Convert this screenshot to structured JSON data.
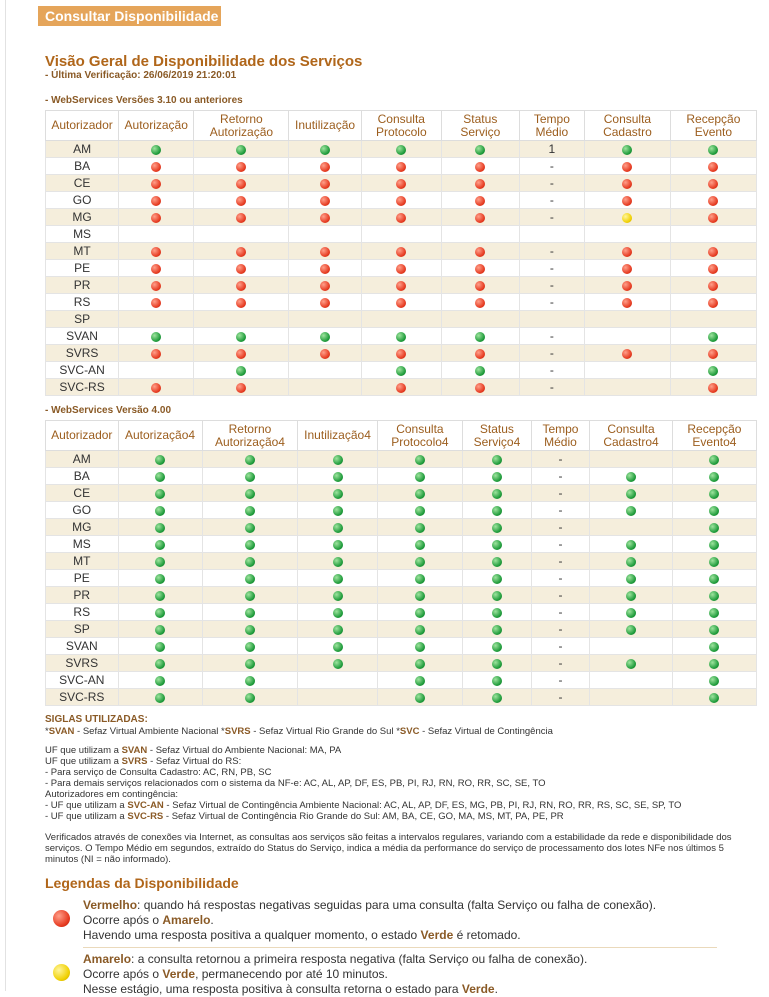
{
  "header": {
    "title": "Consultar Disponibilidade"
  },
  "overview": {
    "title": "Visão Geral de Disponibilidade dos Serviços",
    "last_check": "- Última Verificação: 26/06/2019 21:20:01"
  },
  "table1": {
    "section_label": "- WebServices Versões 3.10 ou anteriores",
    "headers": [
      [
        "Autorizador"
      ],
      [
        "Autorização"
      ],
      [
        "Retorno",
        "Autorização"
      ],
      [
        "Inutilização"
      ],
      [
        "Consulta",
        "Protocolo"
      ],
      [
        "Status",
        "Serviço"
      ],
      [
        "Tempo",
        "Médio"
      ],
      [
        "Consulta",
        "Cadastro"
      ],
      [
        "Recepção",
        "Evento"
      ]
    ],
    "rows": [
      [
        "AM",
        "g",
        "g",
        "g",
        "g",
        "g",
        "1",
        "g",
        "g"
      ],
      [
        "BA",
        "r",
        "r",
        "r",
        "r",
        "r",
        "-",
        "r",
        "r"
      ],
      [
        "CE",
        "r",
        "r",
        "r",
        "r",
        "r",
        "-",
        "r",
        "r"
      ],
      [
        "GO",
        "r",
        "r",
        "r",
        "r",
        "r",
        "-",
        "r",
        "r"
      ],
      [
        "MG",
        "r",
        "r",
        "r",
        "r",
        "r",
        "-",
        "y",
        "r"
      ],
      [
        "MS",
        "",
        "",
        "",
        "",
        "",
        "",
        "",
        ""
      ],
      [
        "MT",
        "r",
        "r",
        "r",
        "r",
        "r",
        "-",
        "r",
        "r"
      ],
      [
        "PE",
        "r",
        "r",
        "r",
        "r",
        "r",
        "-",
        "r",
        "r"
      ],
      [
        "PR",
        "r",
        "r",
        "r",
        "r",
        "r",
        "-",
        "r",
        "r"
      ],
      [
        "RS",
        "r",
        "r",
        "r",
        "r",
        "r",
        "-",
        "r",
        "r"
      ],
      [
        "SP",
        "",
        "",
        "",
        "",
        "",
        "",
        "",
        ""
      ],
      [
        "SVAN",
        "g",
        "g",
        "g",
        "g",
        "g",
        "-",
        "",
        "g"
      ],
      [
        "SVRS",
        "r",
        "r",
        "r",
        "r",
        "r",
        "-",
        "r",
        "r"
      ],
      [
        "SVC-AN",
        "",
        "g",
        "",
        "g",
        "g",
        "-",
        "",
        "g"
      ],
      [
        "SVC-RS",
        "r",
        "r",
        "",
        "r",
        "r",
        "-",
        "",
        "r"
      ]
    ]
  },
  "table2": {
    "section_label": "- WebServices Versão 4.00",
    "headers": [
      [
        "Autorizador"
      ],
      [
        "Autorização4"
      ],
      [
        "Retorno",
        "Autorização4"
      ],
      [
        "Inutilização4"
      ],
      [
        "Consulta",
        "Protocolo4"
      ],
      [
        "Status",
        "Serviço4"
      ],
      [
        "Tempo",
        "Médio"
      ],
      [
        "Consulta",
        "Cadastro4"
      ],
      [
        "Recepção",
        "Evento4"
      ]
    ],
    "rows": [
      [
        "AM",
        "g",
        "g",
        "g",
        "g",
        "g",
        "-",
        "",
        "g"
      ],
      [
        "BA",
        "g",
        "g",
        "g",
        "g",
        "g",
        "-",
        "g",
        "g"
      ],
      [
        "CE",
        "g",
        "g",
        "g",
        "g",
        "g",
        "-",
        "g",
        "g"
      ],
      [
        "GO",
        "g",
        "g",
        "g",
        "g",
        "g",
        "-",
        "g",
        "g"
      ],
      [
        "MG",
        "g",
        "g",
        "g",
        "g",
        "g",
        "-",
        "",
        "g"
      ],
      [
        "MS",
        "g",
        "g",
        "g",
        "g",
        "g",
        "-",
        "g",
        "g"
      ],
      [
        "MT",
        "g",
        "g",
        "g",
        "g",
        "g",
        "-",
        "g",
        "g"
      ],
      [
        "PE",
        "g",
        "g",
        "g",
        "g",
        "g",
        "-",
        "g",
        "g"
      ],
      [
        "PR",
        "g",
        "g",
        "g",
        "g",
        "g",
        "-",
        "g",
        "g"
      ],
      [
        "RS",
        "g",
        "g",
        "g",
        "g",
        "g",
        "-",
        "g",
        "g"
      ],
      [
        "SP",
        "g",
        "g",
        "g",
        "g",
        "g",
        "-",
        "g",
        "g"
      ],
      [
        "SVAN",
        "g",
        "g",
        "g",
        "g",
        "g",
        "-",
        "",
        "g"
      ],
      [
        "SVRS",
        "g",
        "g",
        "g",
        "g",
        "g",
        "-",
        "g",
        "g"
      ],
      [
        "SVC-AN",
        "g",
        "g",
        "",
        "g",
        "g",
        "-",
        "",
        "g"
      ],
      [
        "SVC-RS",
        "g",
        "g",
        "",
        "g",
        "g",
        "-",
        "",
        "g"
      ]
    ]
  },
  "siglas": {
    "title": "SIGLAS UTILIZADAS:",
    "items": [
      {
        "pre": "*",
        "abbr": "SVAN",
        "text": " - Sefaz Virtual Ambiente Nacional "
      },
      {
        "pre": "*",
        "abbr": "SVRS",
        "text": " - Sefaz Virtual Rio Grande do Sul "
      },
      {
        "pre": "*",
        "abbr": "SVC",
        "text": " - Sefaz Virtual de Contingência"
      }
    ]
  },
  "uf_notes": {
    "svan_pre": "UF que utilizam a ",
    "svan_abbr": "SVAN",
    "svan_text": " - Sefaz Virtual do Ambiente Nacional: MA, PA",
    "svrs_pre": "UF que utilizam a ",
    "svrs_abbr": "SVRS",
    "svrs_text": " - Sefaz Virtual do RS:",
    "line1": "- Para serviço de Consulta Cadastro: AC, RN, PB, SC",
    "line2": "- Para demais serviços relacionados com o sistema da NF-e: AC, AL, AP, DF, ES, PB, PI, RJ, RN, RO, RR, SC, SE, TO",
    "line3": "Autorizadores em contingência:",
    "svcan_pre": "- UF que utilizam a ",
    "svcan_abbr": "SVC-AN",
    "svcan_text": " - Sefaz Virtual de Contingência Ambiente Nacional: AC, AL, AP, DF, ES, MG, PB, PI, RJ, RN, RO, RR, RS, SC, SE, SP, TO",
    "svcrs_pre": "- UF que utilizam a ",
    "svcrs_abbr": "SVC-RS",
    "svcrs_text": " - Sefaz Virtual de Contingência Rio Grande do Sul: AM, BA, CE, GO, MA, MS, MT, PA, PE, PR"
  },
  "note": "Verificados através de conexões via Internet, as consultas aos serviços são feitas a intervalos regulares, variando com a estabilidade da rede e disponibilidade dos serviços. O Tempo Médio em segundos, extraído do Status do Serviço, indica a média da performance do serviço de processamento dos lotes NFe nos últimos 5 minutos (NI = não informado).",
  "legend": {
    "title": "Legendas da Disponibilidade",
    "red": {
      "name": "Vermelho",
      "desc": ": quando há respostas negativas seguidas para uma consulta (falta Serviço ou falha de conexão).",
      "l2_pre": "Ocorre após o ",
      "l2_b": "Amarelo",
      "l2_post": ".",
      "l3_pre": "Havendo uma resposta positiva a qualquer momento, o estado ",
      "l3_b": "Verde",
      "l3_post": " é retomado."
    },
    "yellow": {
      "name": "Amarelo",
      "desc": ": a consulta retornou a primeira resposta negativa (falta Serviço ou falha de conexão).",
      "l2_pre": "Ocorre após o ",
      "l2_b": "Verde",
      "l2_post": ", permanecendo por até 10 minutos.",
      "l3_pre": "Nesse estágio, uma resposta positiva à consulta retorna o estado para ",
      "l3_b": "Verde",
      "l3_post": "."
    }
  },
  "colors": {
    "header_bg": "#e5a55a",
    "title": "#b0661a",
    "label": "#8a5a26",
    "row_alt": "#f5eedc"
  }
}
